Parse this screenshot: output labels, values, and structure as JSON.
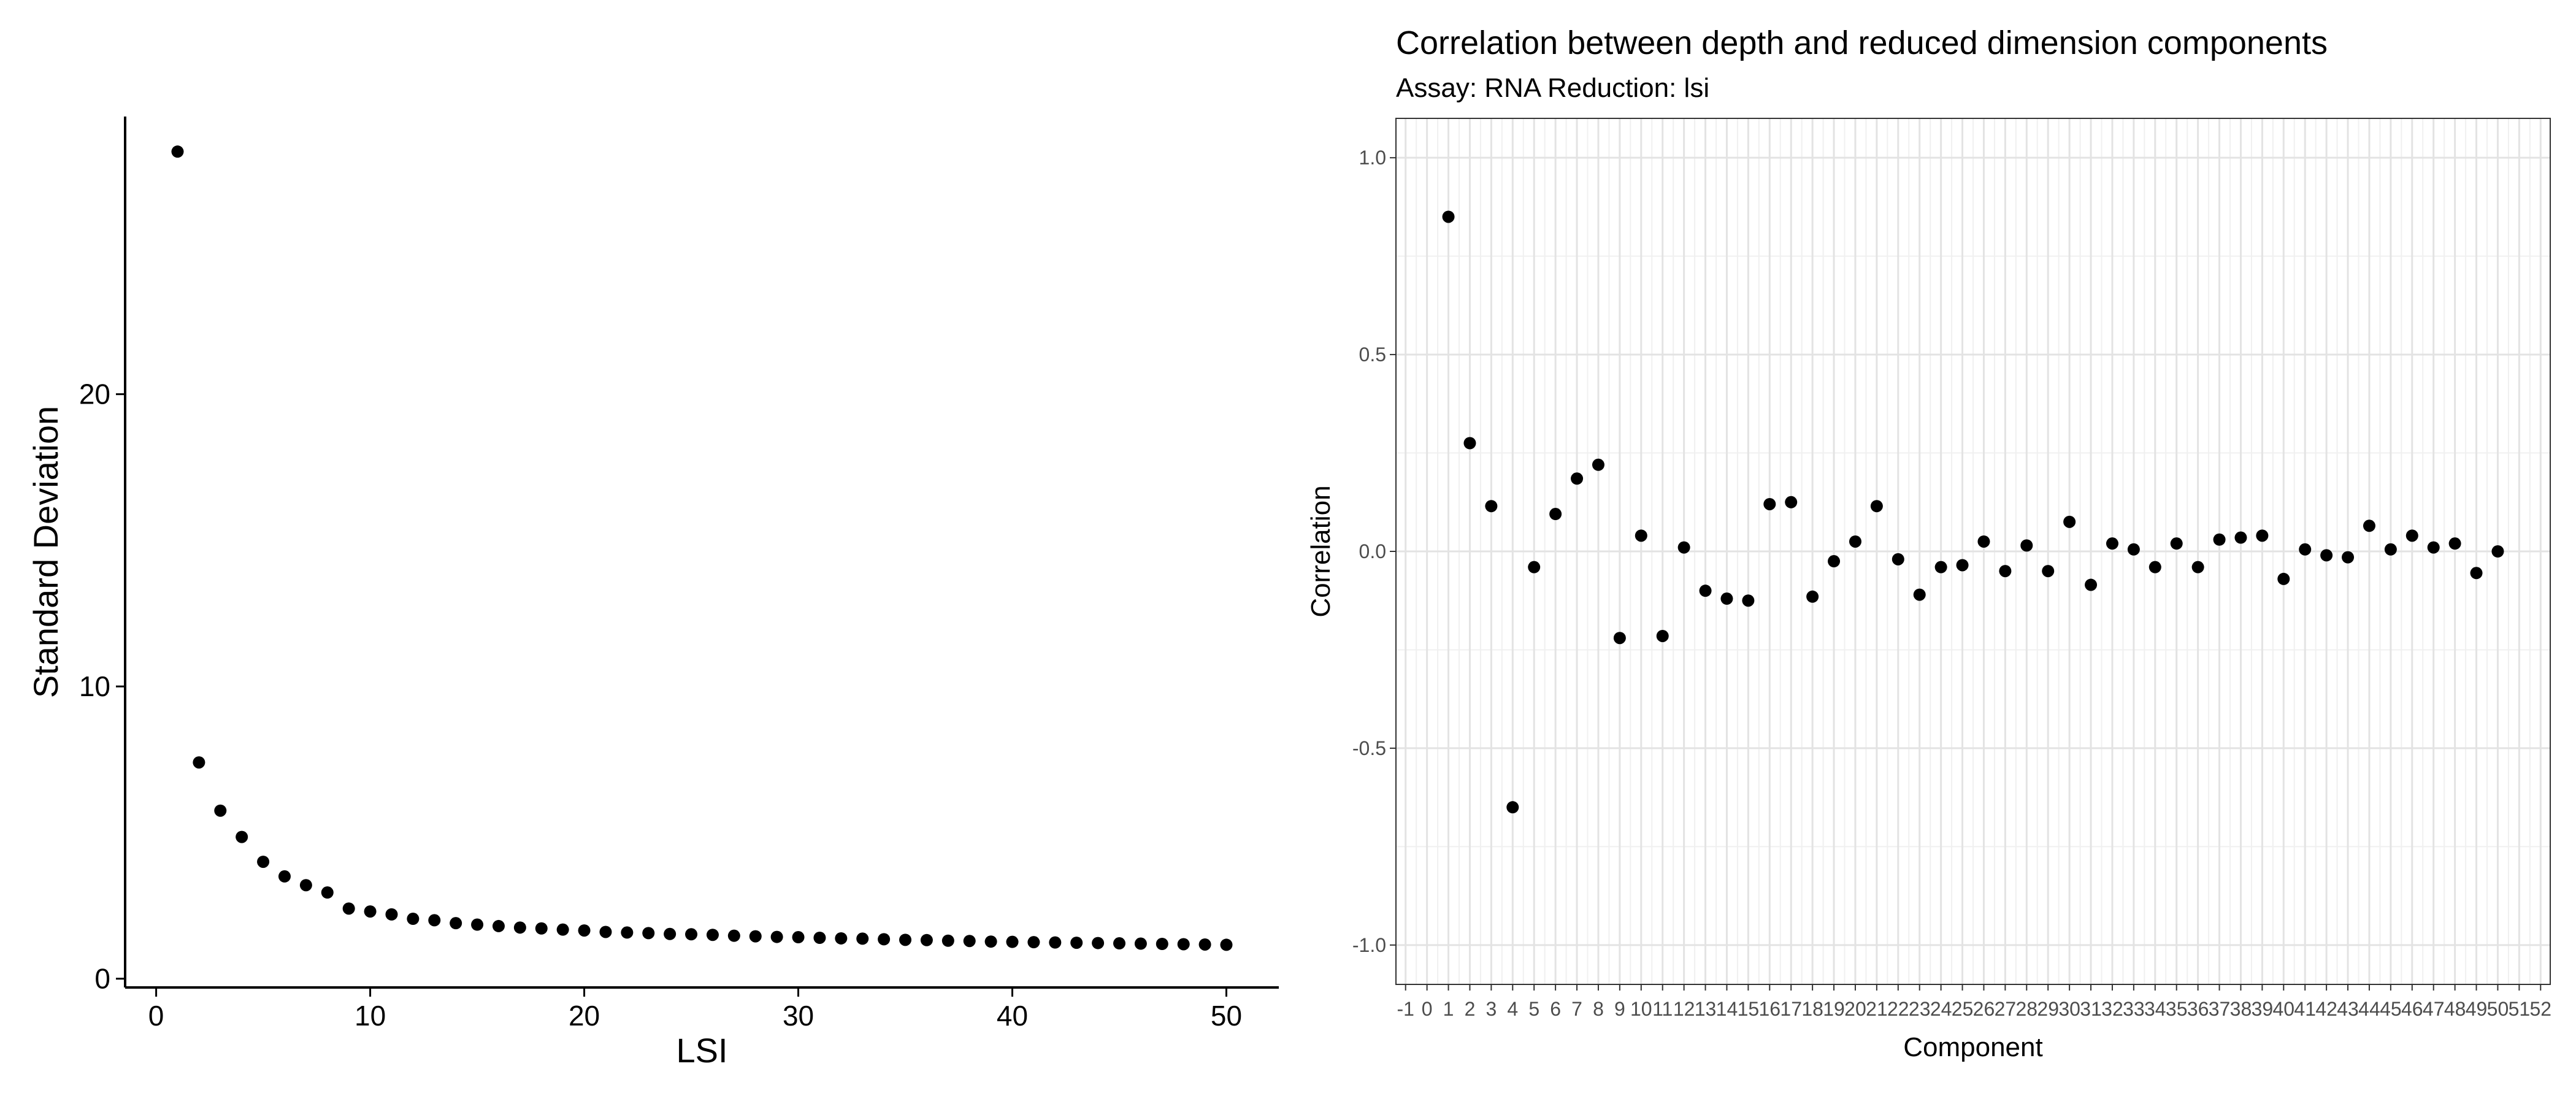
{
  "chart_data": [
    {
      "type": "scatter",
      "title": "",
      "xlabel": "LSI",
      "ylabel": "Standard Deviation",
      "xlim": [
        -1.45,
        52.45
      ],
      "ylim": [
        -0.3,
        29.5
      ],
      "xticks": [
        0,
        10,
        20,
        30,
        40,
        50
      ],
      "yticks": [
        0,
        10,
        20
      ],
      "grid": false,
      "legend": "none",
      "point_color": "#000000",
      "x": [
        1,
        2,
        3,
        4,
        5,
        6,
        7,
        8,
        9,
        10,
        11,
        12,
        13,
        14,
        15,
        16,
        17,
        18,
        19,
        20,
        21,
        22,
        23,
        24,
        25,
        26,
        27,
        28,
        29,
        30,
        31,
        32,
        33,
        34,
        35,
        36,
        37,
        38,
        39,
        40,
        41,
        42,
        43,
        44,
        45,
        46,
        47,
        48,
        49,
        50
      ],
      "y": [
        28.3,
        7.4,
        5.75,
        4.85,
        4.0,
        3.5,
        3.2,
        2.95,
        2.4,
        2.3,
        2.2,
        2.05,
        2.0,
        1.9,
        1.85,
        1.8,
        1.75,
        1.72,
        1.68,
        1.65,
        1.6,
        1.58,
        1.56,
        1.53,
        1.52,
        1.5,
        1.47,
        1.45,
        1.43,
        1.42,
        1.4,
        1.38,
        1.37,
        1.35,
        1.33,
        1.32,
        1.3,
        1.29,
        1.27,
        1.26,
        1.25,
        1.24,
        1.23,
        1.22,
        1.21,
        1.2,
        1.19,
        1.18,
        1.17,
        1.16
      ]
    },
    {
      "type": "scatter",
      "title": "Correlation between depth and reduced dimension components",
      "subtitle": "Assay: RNA Reduction: lsi",
      "xlabel": "Component",
      "ylabel": "Correlation",
      "xlim": [
        -1.45,
        52.45
      ],
      "ylim": [
        -1.1,
        1.1
      ],
      "xticks": [
        -1,
        0,
        1,
        2,
        3,
        4,
        5,
        6,
        7,
        8,
        9,
        10,
        11,
        12,
        13,
        14,
        15,
        16,
        17,
        18,
        19,
        20,
        21,
        22,
        23,
        24,
        25,
        26,
        27,
        28,
        29,
        30,
        31,
        32,
        33,
        34,
        35,
        36,
        37,
        38,
        39,
        40,
        41,
        42,
        43,
        44,
        45,
        46,
        47,
        48,
        49,
        50,
        51,
        52
      ],
      "yticks": [
        -1.0,
        -0.5,
        0.0,
        0.5,
        1.0
      ],
      "ytick_labels": [
        "-1.0",
        "-0.5",
        "0.0",
        "0.5",
        "1.0"
      ],
      "grid": true,
      "legend": "none",
      "point_color": "#000000",
      "x": [
        1,
        2,
        3,
        4,
        5,
        6,
        7,
        8,
        9,
        10,
        11,
        12,
        13,
        14,
        15,
        16,
        17,
        18,
        19,
        20,
        21,
        22,
        23,
        24,
        25,
        26,
        27,
        28,
        29,
        30,
        31,
        32,
        33,
        34,
        35,
        36,
        37,
        38,
        39,
        40,
        41,
        42,
        43,
        44,
        45,
        46,
        47,
        48,
        49,
        50
      ],
      "y": [
        0.85,
        0.275,
        0.115,
        -0.65,
        -0.04,
        0.095,
        0.185,
        0.22,
        -0.22,
        0.04,
        -0.215,
        0.01,
        -0.1,
        -0.12,
        -0.125,
        0.12,
        0.125,
        -0.115,
        -0.025,
        0.025,
        0.115,
        -0.02,
        -0.11,
        -0.04,
        -0.035,
        0.025,
        -0.05,
        0.015,
        -0.05,
        0.075,
        -0.085,
        0.02,
        0.005,
        -0.04,
        0.02,
        -0.04,
        0.03,
        0.035,
        0.04,
        -0.07,
        0.005,
        -0.01,
        -0.015,
        0.065,
        0.005,
        0.04,
        0.01,
        0.02,
        -0.055,
        0.0
      ]
    }
  ]
}
